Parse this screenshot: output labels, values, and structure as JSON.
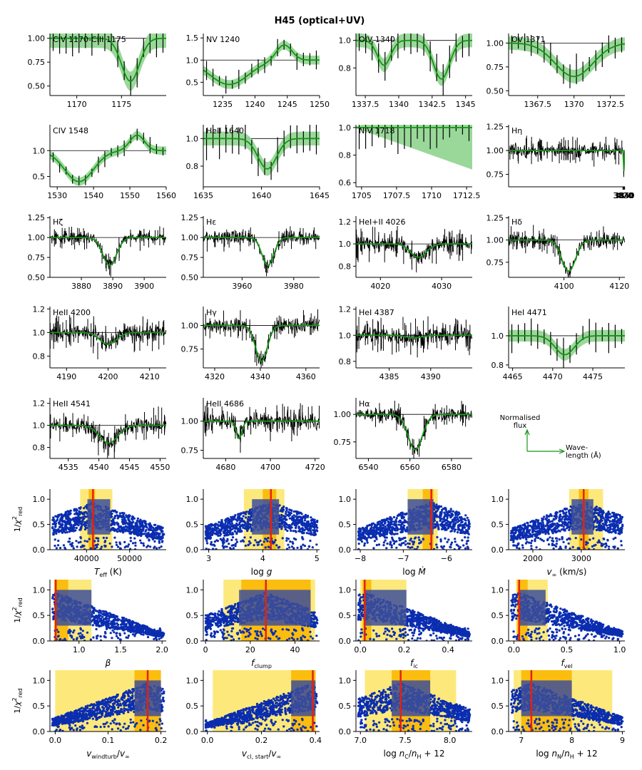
{
  "figure_title": "H45 (optical+UV)",
  "colors": {
    "model": "#159415",
    "model_band": "#8fd48f",
    "observed": "#000000",
    "points": "#0a2db0",
    "best_fit": "#e8200b",
    "err1": "#fbbd0e",
    "err2": "#fde97b",
    "shade": "#3d4f9a"
  },
  "legend": {
    "y_label": "Normalised\nflux",
    "x_label": "Wave-\nlength (Å)"
  },
  "chart_data": [
    {
      "type": "line",
      "title": "CIV 1170-CIII 1175",
      "xlim": [
        1167,
        1180
      ],
      "ylim": [
        0.4,
        1.05
      ],
      "xticks": [
        1170,
        1175
      ],
      "yticks": [
        0.5,
        0.75,
        1.0
      ],
      "ytick_labels": [
        "0.50",
        "0.75",
        "1.00"
      ],
      "sigma": 0.1,
      "lines": [
        {
          "c": 1176,
          "d": 0.45,
          "w": 1.0
        }
      ],
      "noise": 0.08
    },
    {
      "type": "line",
      "title": "NV 1240",
      "xlim": [
        1232,
        1250
      ],
      "ylim": [
        0.2,
        1.6
      ],
      "xticks": [
        1235,
        1240,
        1245,
        1250
      ],
      "yticks": [
        0.5,
        1.0,
        1.5
      ],
      "ytick_labels": [
        "0.5",
        "1.0",
        "1.5"
      ],
      "sigma": 0.1,
      "lines": [
        {
          "c": 1236,
          "d": 0.55,
          "w": 3.0
        }
      ],
      "emission": {
        "c": 1244.5,
        "h": 0.35,
        "w": 1.2
      },
      "noise": 0.08
    },
    {
      "type": "line",
      "title": "OIV 1340",
      "xlim": [
        1336.8,
        1345.5
      ],
      "ylim": [
        0.6,
        1.05
      ],
      "xticks": [
        1337.5,
        1340.0,
        1342.5,
        1345.0
      ],
      "yticks": [
        0.8,
        1.0
      ],
      "ytick_labels": [
        "0.8",
        "1.0"
      ],
      "sigma": 0.05,
      "lines": [
        {
          "c": 1338.9,
          "d": 0.18,
          "w": 0.5
        },
        {
          "c": 1343.2,
          "d": 0.28,
          "w": 0.6
        }
      ],
      "noise": 0.05
    },
    {
      "type": "line",
      "title": "OV 1371",
      "xlim": [
        1365.5,
        1373.5
      ],
      "ylim": [
        0.45,
        1.1
      ],
      "xticks": [
        1367.5,
        1370.0,
        1372.5
      ],
      "yticks": [
        0.5,
        0.75,
        1.0
      ],
      "ytick_labels": [
        "0.50",
        "0.75",
        "1.00"
      ],
      "sigma": 0.07,
      "lines": [
        {
          "c": 1370,
          "d": 0.35,
          "w": 1.3
        }
      ],
      "noise": 0.06
    },
    {
      "type": "line",
      "title": "CIV 1548",
      "xlim": [
        1528,
        1560
      ],
      "ylim": [
        0.3,
        1.5
      ],
      "xticks": [
        1530,
        1540,
        1550,
        1560
      ],
      "yticks": [
        0.5,
        1.0
      ],
      "ytick_labels": [
        "0.5",
        "1.0"
      ],
      "sigma": 0.08,
      "lines": [
        {
          "c": 1536,
          "d": 0.6,
          "w": 4.0
        }
      ],
      "emission": {
        "c": 1552,
        "h": 0.3,
        "w": 2.0
      },
      "noise": 0.06
    },
    {
      "type": "line",
      "title": "HeII 1640",
      "xlim": [
        1635,
        1645
      ],
      "ylim": [
        0.65,
        1.1
      ],
      "xticks": [
        1635,
        1640,
        1645
      ],
      "yticks": [
        0.8,
        1.0
      ],
      "ytick_labels": [
        "0.8",
        "1.0"
      ],
      "sigma": 0.05,
      "lines": [
        {
          "c": 1640.5,
          "d": 0.22,
          "w": 0.8
        }
      ],
      "noise": 0.05
    },
    {
      "type": "line",
      "title": "NIV 1718",
      "xlim": [
        1704.6,
        1712.9
      ],
      "ylim": [
        0.57,
        1.02
      ],
      "xticks": [
        1705.0,
        1707.5,
        1710.0,
        1712.5
      ],
      "yticks": [
        0.6,
        0.8,
        1.0
      ],
      "ytick_labels": [
        "0.6",
        "0.8",
        "1.0"
      ],
      "sigma": 0.05,
      "lines": [],
      "band_bias": -0.3,
      "noise": 0.06
    },
    {
      "type": "line",
      "title": "Hη",
      "xlim": [
        1818.0,
        3854
      ],
      "ylim": [
        0.62,
        1.27
      ],
      "xticks": [
        3820,
        3830,
        3840,
        3850
      ],
      "yticks": [
        0.75,
        1.0,
        1.25
      ],
      "ytick_labels": [
        "0.75",
        "1.00",
        "1.25"
      ],
      "sigma": 0.01,
      "lines": [
        {
          "c": 3835.4,
          "d": 0.3,
          "w": 2.0
        }
      ],
      "noise": 0.05
    },
    {
      "type": "line",
      "title": "Hζ",
      "xlim": [
        3870,
        3907
      ],
      "ylim": [
        0.5,
        1.27
      ],
      "xticks": [
        3880,
        3890,
        3900
      ],
      "yticks": [
        0.5,
        0.75,
        1.0,
        1.25
      ],
      "ytick_labels": [
        "0.50",
        "0.75",
        "1.00",
        "1.25"
      ],
      "sigma": 0.01,
      "lines": [
        {
          "c": 3889,
          "d": 0.35,
          "w": 2.2
        }
      ],
      "noise": 0.05
    },
    {
      "type": "line",
      "title": "Hε",
      "xlim": [
        3945,
        3990
      ],
      "ylim": [
        0.5,
        1.27
      ],
      "xticks": [
        3960,
        3980
      ],
      "yticks": [
        0.5,
        0.75,
        1.0,
        1.25
      ],
      "ytick_labels": [
        "0.50",
        "0.75",
        "1.00",
        "1.25"
      ],
      "sigma": 0.01,
      "lines": [
        {
          "c": 3970,
          "d": 0.35,
          "w": 2.3
        }
      ],
      "noise": 0.05
    },
    {
      "type": "line",
      "title": "HeI+II 4026",
      "xlim": [
        4016,
        4035
      ],
      "ylim": [
        0.7,
        1.25
      ],
      "xticks": [
        4020,
        4030
      ],
      "yticks": [
        0.8,
        1.0,
        1.2
      ],
      "ytick_labels": [
        "0.8",
        "1.0",
        "1.2"
      ],
      "sigma": 0.01,
      "lines": [
        {
          "c": 4026.2,
          "d": 0.12,
          "w": 1.3
        }
      ],
      "noise": 0.05
    },
    {
      "type": "line",
      "title": "Hδ",
      "xlim": [
        4080,
        4122
      ],
      "ylim": [
        0.58,
        1.27
      ],
      "xticks": [
        4100,
        4120
      ],
      "yticks": [
        0.75,
        1.0,
        1.25
      ],
      "ytick_labels": [
        "0.75",
        "1.00",
        "1.25"
      ],
      "sigma": 0.01,
      "lines": [
        {
          "c": 4101.7,
          "d": 0.35,
          "w": 2.5
        }
      ],
      "noise": 0.05
    },
    {
      "type": "line",
      "title": "HeII 4200",
      "xlim": [
        4186,
        4214
      ],
      "ylim": [
        0.7,
        1.22
      ],
      "xticks": [
        4190,
        4200,
        4210
      ],
      "yticks": [
        0.8,
        1.0,
        1.2
      ],
      "ytick_labels": [
        "0.8",
        "1.0",
        "1.2"
      ],
      "sigma": 0.01,
      "lines": [
        {
          "c": 4200,
          "d": 0.1,
          "w": 2.0
        }
      ],
      "noise": 0.05
    },
    {
      "type": "line",
      "title": "Hγ",
      "xlim": [
        4315,
        4366
      ],
      "ylim": [
        0.55,
        1.2
      ],
      "xticks": [
        4320,
        4340,
        4360
      ],
      "yticks": [
        0.75,
        1.0
      ],
      "ytick_labels": [
        "0.75",
        "1.00"
      ],
      "sigma": 0.01,
      "lines": [
        {
          "c": 4340.5,
          "d": 0.38,
          "w": 2.6
        }
      ],
      "noise": 0.05
    },
    {
      "type": "line",
      "title": "HeI 4387",
      "xlim": [
        4381,
        4395
      ],
      "ylim": [
        0.75,
        1.22
      ],
      "xticks": [
        4385,
        4390
      ],
      "yticks": [
        0.8,
        1.0,
        1.2
      ],
      "ytick_labels": [
        "0.8",
        "1.0",
        "1.2"
      ],
      "sigma": 0.01,
      "lines": [
        {
          "c": 4388,
          "d": 0.02,
          "w": 1.0
        }
      ],
      "noise": 0.05
    },
    {
      "type": "line",
      "title": "HeI 4471",
      "xlim": [
        4464.5,
        4479
      ],
      "ylim": [
        0.78,
        1.2
      ],
      "xticks": [
        4465,
        4470,
        4475
      ],
      "yticks": [
        0.8,
        1.0
      ],
      "ytick_labels": [
        "0.8",
        "1.0"
      ],
      "sigma": 0.04,
      "lines": [
        {
          "c": 4471.5,
          "d": 0.13,
          "w": 1.2
        }
      ],
      "noise": 0.04
    },
    {
      "type": "line",
      "title": "HeII 4541",
      "xlim": [
        4532,
        4551
      ],
      "ylim": [
        0.7,
        1.25
      ],
      "xticks": [
        4535,
        4540,
        4545,
        4550
      ],
      "yticks": [
        0.8,
        1.0,
        1.2
      ],
      "ytick_labels": [
        "0.8",
        "1.0",
        "1.2"
      ],
      "sigma": 0.01,
      "lines": [
        {
          "c": 4541.6,
          "d": 0.16,
          "w": 1.5
        }
      ],
      "noise": 0.05
    },
    {
      "type": "line",
      "title": "HeII 4686",
      "xlim": [
        4670,
        4722
      ],
      "ylim": [
        0.68,
        1.2
      ],
      "xticks": [
        4680,
        4700,
        4720
      ],
      "yticks": [
        0.75,
        1.0
      ],
      "ytick_labels": [
        "0.75",
        "1.00"
      ],
      "sigma": 0.01,
      "lines": [
        {
          "c": 4686,
          "d": 0.15,
          "w": 1.3
        }
      ],
      "noise": 0.05
    },
    {
      "type": "line",
      "title": "Hα",
      "xlim": [
        6534,
        6590
      ],
      "ylim": [
        0.6,
        1.15
      ],
      "xticks": [
        6540,
        6560,
        6580
      ],
      "yticks": [
        0.75,
        1.0
      ],
      "ytick_labels": [
        "0.75",
        "1.00"
      ],
      "sigma": 0.01,
      "lines": [
        {
          "c": 6562.5,
          "d": 0.32,
          "w": 3.5
        }
      ],
      "noise": 0.04
    },
    {
      "type": "scatter",
      "xlabel": "T_eff (K)",
      "xlim": [
        31500,
        58500
      ],
      "xticks": [
        40000,
        50000
      ],
      "ylim": [
        0,
        1.2
      ],
      "yticks": [
        0.0,
        0.5,
        1.0
      ],
      "best": 41500,
      "err1": [
        40500,
        42000
      ],
      "err2": [
        38500,
        46000
      ],
      "shade": [
        40200,
        45500
      ],
      "peak": 0.95
    },
    {
      "type": "scatter",
      "xlabel": "log g",
      "xlim": [
        2.9,
        5.05
      ],
      "xticks": [
        3,
        4,
        5
      ],
      "ylim": [
        0,
        1.2
      ],
      "yticks": [
        0.0,
        0.5,
        1.0
      ],
      "best": 4.15,
      "err1": [
        4.0,
        4.25
      ],
      "err2": [
        3.65,
        4.4
      ],
      "shade": [
        3.8,
        4.3
      ],
      "peak": 0.95
    },
    {
      "type": "scatter",
      "xlabel": "log Mdot",
      "xlim": [
        -8.1,
        -5.4
      ],
      "xticks": [
        -8,
        -7,
        -6
      ],
      "ylim": [
        0,
        1.2
      ],
      "yticks": [
        0.0,
        0.5,
        1.0
      ],
      "best": -6.35,
      "err1": [
        -6.55,
        -6.3
      ],
      "err2": [
        -6.9,
        -6.2
      ],
      "shade": [
        -6.9,
        -6.3
      ],
      "peak": 0.95
    },
    {
      "type": "scatter",
      "xlabel": "v_inf (km/s)",
      "xlim": [
        1500,
        3900
      ],
      "xticks": [
        2000,
        3000
      ],
      "ylim": [
        0,
        1.2
      ],
      "yticks": [
        0.0,
        0.5,
        1.0
      ],
      "best": 3050,
      "err1": [
        2950,
        3150
      ],
      "err2": [
        2750,
        3450
      ],
      "shade": [
        2800,
        3250
      ],
      "peak": 0.95
    },
    {
      "type": "scatter",
      "xlabel": "β",
      "xlim": [
        0.65,
        2.05
      ],
      "xticks": [
        1.0,
        1.5,
        2.0
      ],
      "ylim": [
        0,
        1.2
      ],
      "yticks": [
        0.0,
        0.5,
        1.0
      ],
      "best": 0.72,
      "err1": [
        0.7,
        0.87
      ],
      "err2": [
        0.7,
        1.15
      ],
      "shade": [
        0.72,
        1.15
      ],
      "peak": 0.95
    },
    {
      "type": "scatter",
      "xlabel": "f_clump",
      "xlim": [
        -1,
        51
      ],
      "xticks": [
        0,
        20,
        40
      ],
      "ylim": [
        0,
        1.2
      ],
      "yticks": [
        0.0,
        0.5,
        1.0
      ],
      "best": 27,
      "err1": [
        16,
        47
      ],
      "err2": [
        8,
        49
      ],
      "shade": [
        15,
        47
      ],
      "peak": 0.95
    },
    {
      "type": "scatter",
      "xlabel": "f_ic",
      "xlim": [
        -0.02,
        0.51
      ],
      "xticks": [
        0.0,
        0.2,
        0.4
      ],
      "ylim": [
        0,
        1.2
      ],
      "yticks": [
        0.0,
        0.5,
        1.0
      ],
      "best": 0.02,
      "err1": [
        0.01,
        0.05
      ],
      "err2": [
        0.0,
        0.21
      ],
      "shade": [
        0.02,
        0.21
      ],
      "peak": 0.95
    },
    {
      "type": "scatter",
      "xlabel": "f_vel",
      "xlim": [
        -0.05,
        1.05
      ],
      "xticks": [
        0.0,
        0.5,
        1.0
      ],
      "ylim": [
        0,
        1.2
      ],
      "yticks": [
        0.0,
        0.5,
        1.0
      ],
      "best": 0.05,
      "err1": [
        0.03,
        0.13
      ],
      "err2": [
        0.02,
        0.32
      ],
      "shade": [
        0.05,
        0.3
      ],
      "peak": 0.95
    },
    {
      "type": "scatter",
      "xlabel": "v_windturb/v_inf",
      "xlim": [
        -0.01,
        0.21
      ],
      "xticks": [
        0.0,
        0.1,
        0.2
      ],
      "ylim": [
        0,
        1.2
      ],
      "yticks": [
        0.0,
        0.5,
        1.0
      ],
      "best": 0.175,
      "err1": [
        0.15,
        0.2
      ],
      "err2": [
        0.0,
        0.2
      ],
      "shade": [
        0.15,
        0.2
      ],
      "peak": 0.95
    },
    {
      "type": "scatter",
      "xlabel": "v_cl,start/v_inf",
      "xlim": [
        -0.015,
        0.415
      ],
      "xticks": [
        0.0,
        0.2,
        0.4
      ],
      "ylim": [
        0,
        1.2
      ],
      "yticks": [
        0.0,
        0.5,
        1.0
      ],
      "best": 0.39,
      "err1": [
        0.31,
        0.4
      ],
      "err2": [
        0.02,
        0.4
      ],
      "shade": [
        0.31,
        0.4
      ],
      "peak": 0.95
    },
    {
      "type": "scatter",
      "xlabel": "log nC/nH + 12",
      "xlim": [
        6.95,
        8.25
      ],
      "xticks": [
        7.0,
        7.5,
        8.0
      ],
      "ylim": [
        0,
        1.2
      ],
      "yticks": [
        0.0,
        0.5,
        1.0
      ],
      "best": 7.45,
      "err1": [
        7.35,
        7.78
      ],
      "err2": [
        7.05,
        8.07
      ],
      "shade": [
        7.35,
        7.78
      ],
      "peak": 0.95
    },
    {
      "type": "scatter",
      "xlabel": "log nN/nH + 12",
      "xlim": [
        6.75,
        9.05
      ],
      "xticks": [
        7,
        8,
        9
      ],
      "ylim": [
        0,
        1.2
      ],
      "yticks": [
        0.0,
        0.5,
        1.0
      ],
      "best": 7.2,
      "err1": [
        7.0,
        8.0
      ],
      "err2": [
        6.85,
        8.8
      ],
      "shade": [
        7.0,
        8.0
      ],
      "peak": 0.95
    }
  ]
}
